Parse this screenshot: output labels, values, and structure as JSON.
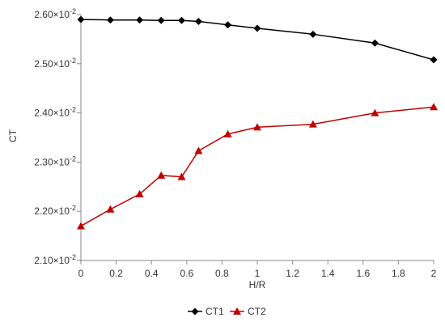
{
  "chart_data": {
    "type": "line",
    "xlabel": "H/R",
    "ylabel": "CT",
    "xlim": [
      0,
      2
    ],
    "ylim": [
      0.021,
      0.026
    ],
    "x_ticks": [
      {
        "value": 0,
        "label": "0"
      },
      {
        "value": 0.2,
        "label": "0.2"
      },
      {
        "value": 0.4,
        "label": "0.4"
      },
      {
        "value": 0.6,
        "label": "0.6"
      },
      {
        "value": 0.8,
        "label": "0.8"
      },
      {
        "value": 1.0,
        "label": "1"
      },
      {
        "value": 1.2,
        "label": "1.2"
      },
      {
        "value": 1.4,
        "label": "1.4"
      },
      {
        "value": 1.6,
        "label": "1.6"
      },
      {
        "value": 1.8,
        "label": "1.8"
      },
      {
        "value": 2.0,
        "label": "2"
      }
    ],
    "y_ticks": [
      {
        "value": 0.021,
        "mantissa": "2.10",
        "exponent": "-2"
      },
      {
        "value": 0.022,
        "mantissa": "2.20",
        "exponent": "-2"
      },
      {
        "value": 0.023,
        "mantissa": "2.30",
        "exponent": "-2"
      },
      {
        "value": 0.024,
        "mantissa": "2.40",
        "exponent": "-2"
      },
      {
        "value": 0.025,
        "mantissa": "2.50",
        "exponent": "-2"
      },
      {
        "value": 0.026,
        "mantissa": "2.60",
        "exponent": "-2"
      }
    ],
    "grid": false,
    "legend_position": "bottom",
    "series": [
      {
        "name": "CT1",
        "color": "#000000",
        "marker": "diamond",
        "x": [
          0,
          0.167,
          0.333,
          0.455,
          0.571,
          0.667,
          0.833,
          1.0,
          1.316,
          1.667,
          2.0
        ],
        "y": [
          0.0259,
          0.02589,
          0.02589,
          0.02588,
          0.02588,
          0.02586,
          0.02579,
          0.02572,
          0.0256,
          0.02542,
          0.02508
        ]
      },
      {
        "name": "CT2",
        "color": "#c00000",
        "marker": "triangle",
        "x": [
          0,
          0.167,
          0.333,
          0.455,
          0.571,
          0.667,
          0.833,
          1.0,
          1.316,
          1.667,
          2.0
        ],
        "y": [
          0.0217,
          0.02204,
          0.02235,
          0.02273,
          0.0227,
          0.02323,
          0.02357,
          0.02371,
          0.02377,
          0.024,
          0.02412
        ]
      }
    ]
  }
}
